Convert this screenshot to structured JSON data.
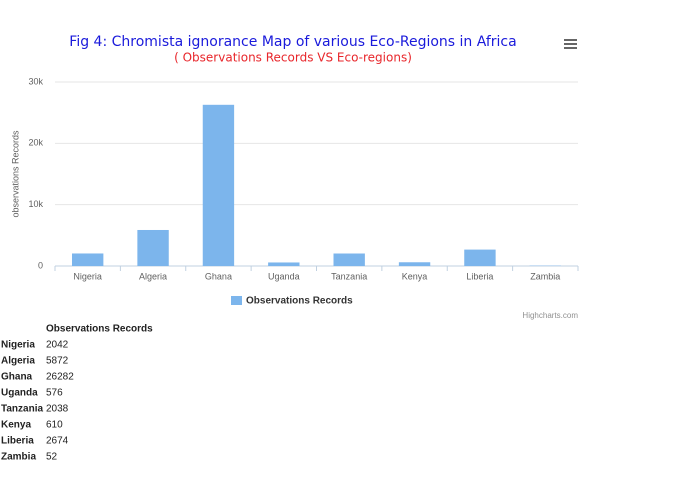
{
  "chart_data": {
    "type": "bar",
    "title": "Fig 4: Chromista ignorance Map of various Eco-Regions in Africa",
    "subtitle": "( Observations Records VS Eco-regions)",
    "y_axis_label": "observations Records",
    "categories": [
      "Nigeria",
      "Algeria",
      "Ghana",
      "Uganda",
      "Tanzania",
      "Kenya",
      "Liberia",
      "Zambia"
    ],
    "series": [
      {
        "name": "Observations Records",
        "color": "#7cb5ec",
        "values": [
          2042,
          5872,
          26282,
          576,
          2038,
          610,
          2674,
          52
        ]
      }
    ],
    "ylim": [
      0,
      30000
    ],
    "yticks": [
      0,
      {
        "value": 10000,
        "label": "10k"
      },
      {
        "value": 20000,
        "label": "20k"
      },
      {
        "value": 30000,
        "label": "30k"
      }
    ],
    "grid": true,
    "legend": "bottom",
    "credits": "Highcharts.com"
  }
}
